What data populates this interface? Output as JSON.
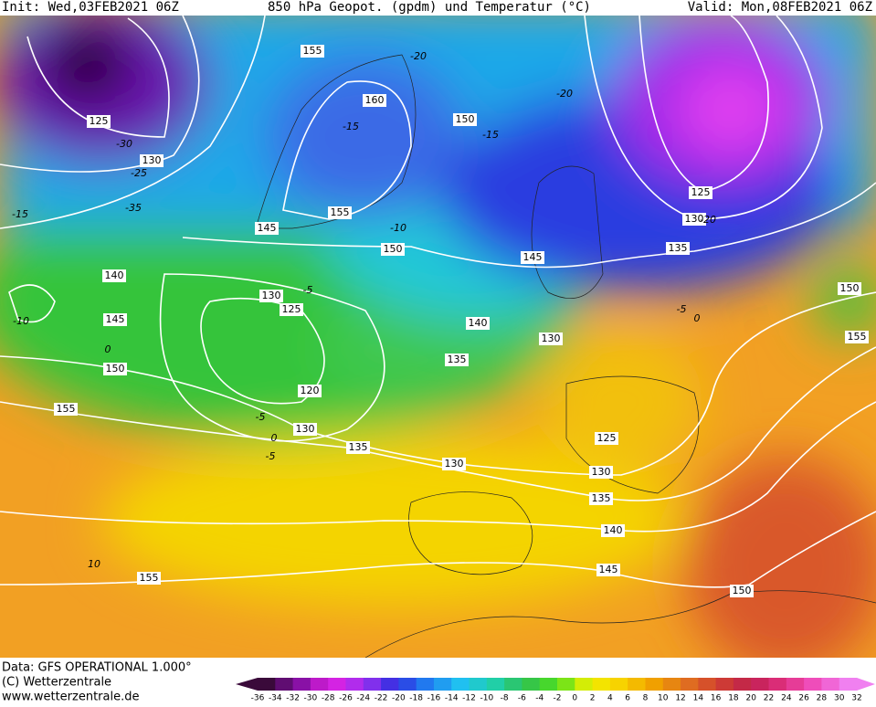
{
  "header": {
    "init": "Init: Wed,03FEB2021 06Z",
    "title": "850 hPa Geopot. (gpdm) und Temperatur (°C)",
    "valid": "Valid: Mon,08FEB2021 06Z"
  },
  "map": {
    "geopotential_labels": [
      155,
      160,
      125,
      150,
      130,
      155,
      145,
      150,
      125,
      130,
      135,
      145,
      140,
      130,
      125,
      145,
      140,
      130,
      150,
      135,
      120,
      155,
      130,
      135,
      125,
      130,
      130,
      135,
      140,
      145,
      155,
      150,
      150,
      155
    ],
    "temperature_labels": [
      -30,
      -25,
      -35,
      -15,
      -20,
      -15,
      -15,
      -20,
      -10,
      -10,
      0,
      -5,
      -5,
      0,
      -5,
      10,
      -5,
      0,
      -20
    ]
  },
  "colorbar": {
    "ticks": [
      -36,
      -34,
      -32,
      -30,
      -28,
      -26,
      -24,
      -22,
      -20,
      -18,
      -16,
      -14,
      -12,
      -10,
      -8,
      -6,
      -4,
      -2,
      0,
      2,
      4,
      6,
      8,
      10,
      12,
      14,
      16,
      18,
      20,
      22,
      24,
      26,
      28,
      30,
      32
    ]
  },
  "footer": {
    "data": "Data: GFS OPERATIONAL 1.000°",
    "copyright": "(C) Wetterzentrale",
    "url": "www.wetterzentrale.de"
  }
}
